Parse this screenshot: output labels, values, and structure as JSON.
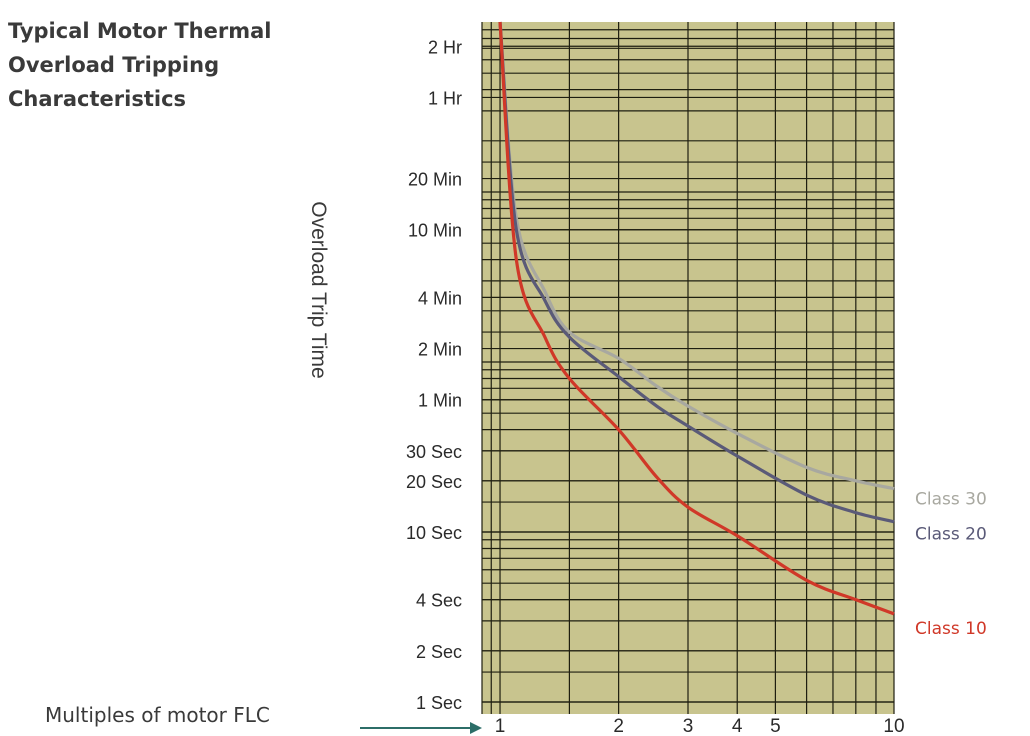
{
  "chart_data": {
    "type": "line",
    "title_lines": [
      "Typical Motor Thermal",
      "Overload Tripping",
      "Characteristics"
    ],
    "ylabel": "Overload Trip Time",
    "xlabel": "Multiples of motor FLC",
    "x_scale": "log",
    "y_scale": "log",
    "xlim": [
      0.9,
      10
    ],
    "ylim": [
      0.85,
      10000
    ],
    "y_ticks": [
      {
        "value": 7200,
        "label": "2 Hr"
      },
      {
        "value": 3600,
        "label": "1 Hr"
      },
      {
        "value": 1200,
        "label": "20 Min"
      },
      {
        "value": 600,
        "label": "10 Min"
      },
      {
        "value": 240,
        "label": "4 Min"
      },
      {
        "value": 120,
        "label": "2 Min"
      },
      {
        "value": 60,
        "label": "1 Min"
      },
      {
        "value": 30,
        "label": "30 Sec"
      },
      {
        "value": 20,
        "label": "20 Sec"
      },
      {
        "value": 10,
        "label": "10 Sec"
      },
      {
        "value": 4,
        "label": "4 Sec"
      },
      {
        "value": 2,
        "label": "2 Sec"
      },
      {
        "value": 1,
        "label": "1 Sec"
      }
    ],
    "x_ticks": [
      {
        "value": 1,
        "label": "1"
      },
      {
        "value": 2,
        "label": "2"
      },
      {
        "value": 3,
        "label": "3"
      },
      {
        "value": 4,
        "label": "4"
      },
      {
        "value": 5,
        "label": "5"
      },
      {
        "value": 10,
        "label": "10"
      }
    ],
    "grid": true,
    "series": [
      {
        "name": "Class 30",
        "color": "#a8a8a0",
        "points": [
          [
            1.0,
            10000
          ],
          [
            1.1,
            700
          ],
          [
            1.3,
            260
          ],
          [
            1.5,
            150
          ],
          [
            2.0,
            105
          ],
          [
            2.5,
            72
          ],
          [
            3.0,
            55
          ],
          [
            4.0,
            38
          ],
          [
            6.0,
            24
          ],
          [
            8.0,
            20
          ],
          [
            10.0,
            18
          ]
        ]
      },
      {
        "name": "Class 20",
        "color": "#5a5a78",
        "points": [
          [
            1.0,
            10000
          ],
          [
            1.1,
            600
          ],
          [
            1.3,
            230
          ],
          [
            1.5,
            140
          ],
          [
            2.0,
            82
          ],
          [
            2.5,
            55
          ],
          [
            3.0,
            42
          ],
          [
            4.0,
            28
          ],
          [
            6.0,
            16.5
          ],
          [
            8.0,
            13
          ],
          [
            10.0,
            11.5
          ]
        ]
      },
      {
        "name": "Class 10",
        "color": "#d03828",
        "points": [
          [
            1.0,
            10000
          ],
          [
            1.1,
            400
          ],
          [
            1.3,
            140
          ],
          [
            1.5,
            80
          ],
          [
            2.0,
            40
          ],
          [
            2.5,
            21
          ],
          [
            3.0,
            14
          ],
          [
            4.0,
            9.5
          ],
          [
            6.0,
            5.2
          ],
          [
            8.0,
            4.0
          ],
          [
            10.0,
            3.3
          ]
        ]
      }
    ]
  }
}
